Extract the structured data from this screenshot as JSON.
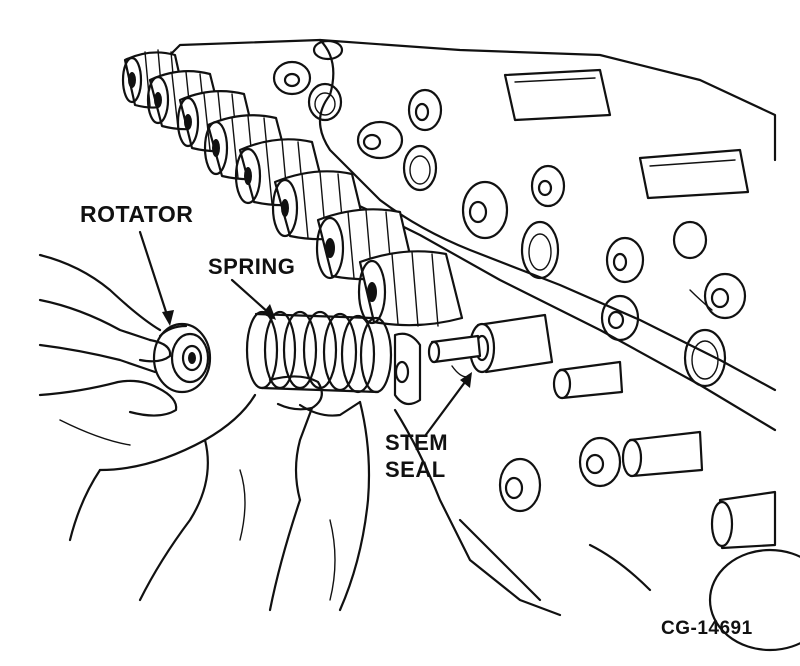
{
  "labels": {
    "rotator": "ROTATOR",
    "spring": "SPRING",
    "stem": "STEM",
    "seal": "SEAL"
  },
  "figure_code": "CG-14691",
  "colors": {
    "ink": "#111111",
    "paper": "#ffffff"
  }
}
